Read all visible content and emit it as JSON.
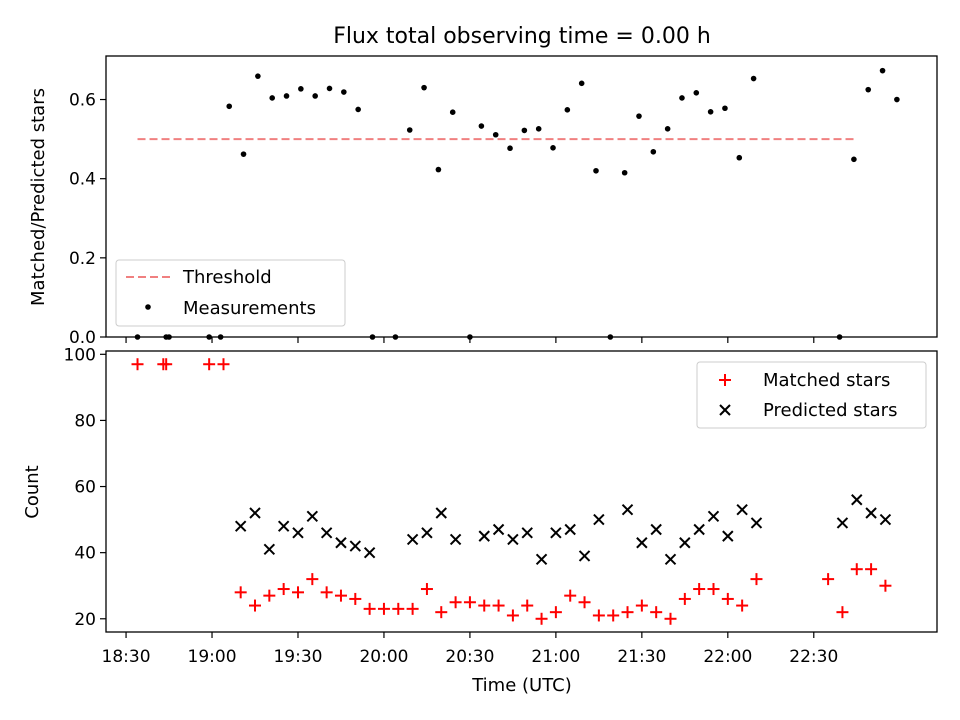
{
  "figure_title": "Flux total observing time = 0.00 h",
  "x_axis": {
    "label": "Time (UTC)",
    "range_minutes": [
      1103,
      1393
    ],
    "ticks": [
      {
        "t": 1110,
        "label": "18:30"
      },
      {
        "t": 1140,
        "label": "19:00"
      },
      {
        "t": 1170,
        "label": "19:30"
      },
      {
        "t": 1200,
        "label": "20:00"
      },
      {
        "t": 1230,
        "label": "20:30"
      },
      {
        "t": 1260,
        "label": "21:00"
      },
      {
        "t": 1290,
        "label": "21:30"
      },
      {
        "t": 1320,
        "label": "22:00"
      },
      {
        "t": 1350,
        "label": "22:30"
      }
    ]
  },
  "chart_data": [
    {
      "type": "scatter",
      "ylabel": "Matched/Predicted stars",
      "ylim": [
        0,
        0.71
      ],
      "yticks": [
        0.0,
        0.2,
        0.4,
        0.6
      ],
      "legend_position": "bottom-left",
      "threshold": {
        "name": "Threshold",
        "value": 0.5,
        "x_range": [
          1114,
          1364
        ],
        "color": "#f08080"
      },
      "series": [
        {
          "name": "Measurements",
          "color": "#000000",
          "x": [
            1114,
            1124,
            1125,
            1139,
            1143,
            1146,
            1151,
            1156,
            1161,
            1166,
            1171,
            1176,
            1181,
            1186,
            1191,
            1196,
            1204,
            1209,
            1214,
            1219,
            1224,
            1230,
            1234,
            1239,
            1244,
            1249,
            1254,
            1259,
            1264,
            1269,
            1274,
            1279,
            1284,
            1289,
            1294,
            1299,
            1304,
            1309,
            1314,
            1319,
            1324,
            1329,
            1359,
            1364,
            1369,
            1374,
            1379
          ],
          "y": [
            0.0,
            0.0,
            0.0,
            0.0,
            0.0,
            0.583,
            0.462,
            0.659,
            0.604,
            0.609,
            0.627,
            0.609,
            0.628,
            0.619,
            0.575,
            0.0,
            0.0,
            0.523,
            0.63,
            0.423,
            0.568,
            0.0,
            0.533,
            0.511,
            0.477,
            0.522,
            0.526,
            0.478,
            0.574,
            0.641,
            0.42,
            0.0,
            0.415,
            0.558,
            0.468,
            0.526,
            0.604,
            0.617,
            0.569,
            0.578,
            0.453,
            0.653,
            0.0,
            0.449,
            0.625,
            0.673,
            0.6
          ]
        }
      ]
    },
    {
      "type": "scatter",
      "ylabel": "Count",
      "ylim": [
        16,
        101
      ],
      "yticks": [
        20,
        40,
        60,
        80,
        100
      ],
      "legend_position": "top-right",
      "series": [
        {
          "name": "Matched stars",
          "color": "#ff0000",
          "marker": "plus",
          "x": [
            1114,
            1123,
            1124,
            1139,
            1144,
            1150,
            1155,
            1160,
            1165,
            1170,
            1175,
            1180,
            1185,
            1190,
            1195,
            1200,
            1205,
            1210,
            1215,
            1220,
            1225,
            1230,
            1235,
            1240,
            1245,
            1250,
            1255,
            1260,
            1265,
            1270,
            1275,
            1280,
            1285,
            1290,
            1295,
            1300,
            1305,
            1310,
            1315,
            1320,
            1325,
            1330,
            1355,
            1360,
            1365,
            1370,
            1375
          ],
          "y": [
            97,
            97,
            97,
            97,
            97,
            28,
            24,
            27,
            29,
            28,
            32,
            28,
            27,
            26,
            23,
            23,
            23,
            23,
            29,
            22,
            25,
            25,
            24,
            24,
            21,
            24,
            20,
            22,
            27,
            25,
            21,
            21,
            22,
            24,
            22,
            20,
            26,
            29,
            29,
            26,
            24,
            32,
            32,
            22,
            35,
            35,
            30
          ]
        },
        {
          "name": "Predicted stars",
          "color": "#000000",
          "marker": "x",
          "x": [
            1150,
            1155,
            1160,
            1165,
            1170,
            1175,
            1180,
            1185,
            1190,
            1195,
            1210,
            1215,
            1220,
            1225,
            1235,
            1240,
            1245,
            1250,
            1255,
            1260,
            1265,
            1270,
            1275,
            1285,
            1290,
            1295,
            1300,
            1305,
            1310,
            1315,
            1320,
            1325,
            1330,
            1360,
            1365,
            1370,
            1375
          ],
          "y": [
            48,
            52,
            41,
            48,
            46,
            51,
            46,
            43,
            42,
            40,
            44,
            46,
            52,
            44,
            45,
            47,
            44,
            46,
            38,
            46,
            47,
            39,
            50,
            53,
            43,
            47,
            38,
            43,
            47,
            51,
            45,
            53,
            49,
            49,
            56,
            52,
            50
          ]
        }
      ]
    }
  ]
}
